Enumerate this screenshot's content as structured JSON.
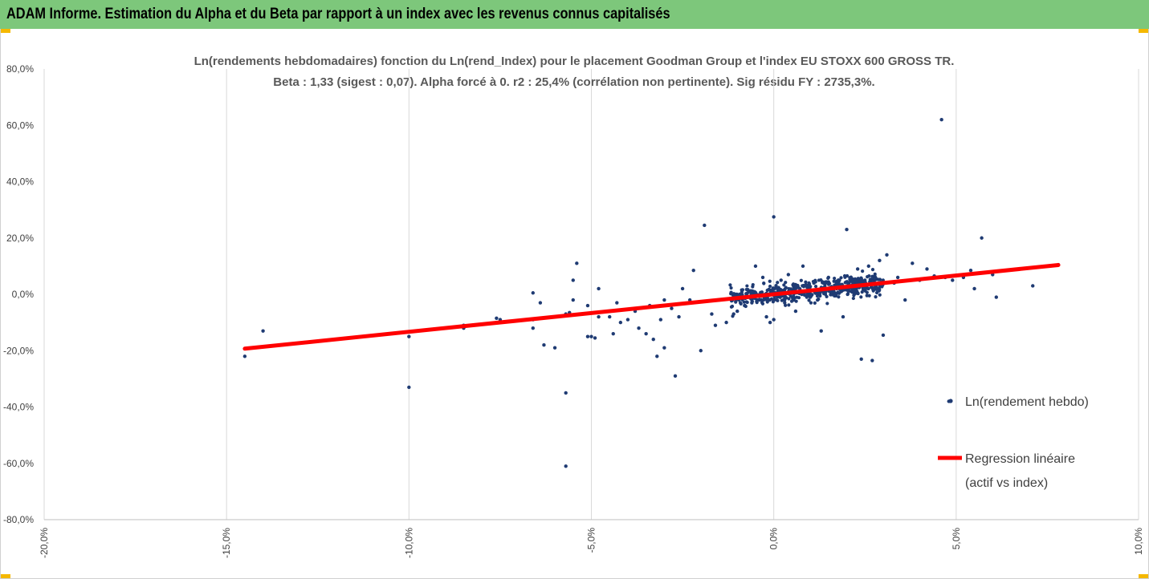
{
  "header": {
    "title": "ADAM Informe. Estimation du Alpha et du Beta par rapport à un index avec les revenus connus capitalisés"
  },
  "colors": {
    "banner": "#7dc77b",
    "accent": "#f5b800",
    "points": "#1f3b73",
    "regression": "#ff0000",
    "grid": "#d9d9d9"
  },
  "chart_data": {
    "type": "scatter",
    "title": "Ln(rendements hebdomadaires) fonction du Ln(rend_Index) pour le placement Goodman Group et l'index EU STOXX 600 GROSS TR.",
    "subtitle": "Beta : 1,33 (sigest : 0,07). Alpha forcé à 0. r2 : 25,4% (corrélation non pertinente). Sig résidu FY : 2735,3%.",
    "xlim": [
      -0.2,
      0.1
    ],
    "ylim": [
      -0.8,
      0.8
    ],
    "x_ticks": [
      "-20,0%",
      "-15,0%",
      "-10,0%",
      "-5,0%",
      "0,0%",
      "5,0%",
      "10,0%"
    ],
    "y_ticks": [
      "80,0%",
      "60,0%",
      "40,0%",
      "20,0%",
      "0,0%",
      "-20,0%",
      "-40,0%",
      "-60,0%",
      "-80,0%"
    ],
    "grid": "vertical",
    "legend_position": "right",
    "series": [
      {
        "name": "Ln(rendement hebdo)",
        "kind": "points",
        "points": [
          [
            -0.145,
            -0.22
          ],
          [
            -0.14,
            -0.13
          ],
          [
            -0.1,
            -0.15
          ],
          [
            -0.1,
            -0.33
          ],
          [
            -0.085,
            -0.12
          ],
          [
            -0.085,
            -0.11
          ],
          [
            -0.076,
            -0.085
          ],
          [
            -0.075,
            -0.09
          ],
          [
            -0.066,
            0.005
          ],
          [
            -0.066,
            -0.12
          ],
          [
            -0.066,
            -0.09
          ],
          [
            -0.064,
            -0.03
          ],
          [
            -0.063,
            -0.18
          ],
          [
            -0.06,
            -0.19
          ],
          [
            -0.057,
            -0.35
          ],
          [
            -0.057,
            -0.61
          ],
          [
            -0.057,
            -0.07
          ],
          [
            -0.056,
            -0.065
          ],
          [
            -0.055,
            0.05
          ],
          [
            -0.055,
            -0.02
          ],
          [
            -0.054,
            0.11
          ],
          [
            -0.051,
            -0.15
          ],
          [
            -0.051,
            -0.04
          ],
          [
            -0.05,
            -0.15
          ],
          [
            -0.049,
            -0.155
          ],
          [
            -0.048,
            -0.08
          ],
          [
            -0.048,
            0.02
          ],
          [
            -0.045,
            -0.08
          ],
          [
            -0.044,
            -0.14
          ],
          [
            -0.043,
            -0.03
          ],
          [
            -0.042,
            -0.1
          ],
          [
            -0.04,
            -0.09
          ],
          [
            -0.038,
            -0.06
          ],
          [
            -0.037,
            -0.12
          ],
          [
            -0.035,
            -0.14
          ],
          [
            -0.034,
            -0.04
          ],
          [
            -0.033,
            -0.16
          ],
          [
            -0.032,
            -0.22
          ],
          [
            -0.031,
            -0.09
          ],
          [
            -0.03,
            -0.19
          ],
          [
            -0.03,
            -0.02
          ],
          [
            -0.028,
            -0.05
          ],
          [
            -0.027,
            -0.29
          ],
          [
            -0.026,
            -0.08
          ],
          [
            -0.025,
            0.02
          ],
          [
            -0.023,
            -0.02
          ],
          [
            -0.022,
            0.085
          ],
          [
            -0.02,
            -0.2
          ],
          [
            -0.019,
            0.245
          ],
          [
            -0.017,
            -0.07
          ],
          [
            -0.016,
            -0.11
          ],
          [
            -0.015,
            -0.02
          ],
          [
            -0.013,
            -0.1
          ],
          [
            -0.011,
            -0.07
          ],
          [
            -0.01,
            -0.06
          ],
          [
            -0.008,
            -0.04
          ],
          [
            -0.006,
            -0.03
          ],
          [
            -0.005,
            0.1
          ],
          [
            -0.004,
            -0.02
          ],
          [
            -0.003,
            0.06
          ],
          [
            -0.002,
            -0.08
          ],
          [
            -0.001,
            -0.1
          ],
          [
            0.0,
            0.275
          ],
          [
            0.0,
            -0.09
          ],
          [
            0.001,
            -0.01
          ],
          [
            0.002,
            0.05
          ],
          [
            0.003,
            -0.03
          ],
          [
            0.004,
            0.07
          ],
          [
            0.006,
            -0.06
          ],
          [
            0.008,
            0.1
          ],
          [
            0.009,
            0.03
          ],
          [
            0.01,
            -0.01
          ],
          [
            0.011,
            0.04
          ],
          [
            0.012,
            -0.02
          ],
          [
            0.013,
            -0.13
          ],
          [
            0.015,
            0.06
          ],
          [
            0.016,
            0.02
          ],
          [
            0.018,
            0.05
          ],
          [
            0.019,
            -0.08
          ],
          [
            0.02,
            0.23
          ],
          [
            0.021,
            0.03
          ],
          [
            0.023,
            0.09
          ],
          [
            0.024,
            -0.23
          ],
          [
            0.025,
            0.05
          ],
          [
            0.026,
            0.1
          ],
          [
            0.027,
            -0.235
          ],
          [
            0.028,
            0.03
          ],
          [
            0.029,
            0.12
          ],
          [
            0.03,
            -0.145
          ],
          [
            0.031,
            0.14
          ],
          [
            0.033,
            0.04
          ],
          [
            0.034,
            0.06
          ],
          [
            0.036,
            -0.02
          ],
          [
            0.038,
            0.11
          ],
          [
            0.04,
            0.05
          ],
          [
            0.042,
            0.09
          ],
          [
            0.044,
            0.065
          ],
          [
            0.046,
            0.62
          ],
          [
            0.047,
            0.06
          ],
          [
            0.048,
            -0.38
          ],
          [
            0.049,
            0.05
          ],
          [
            0.052,
            0.06
          ],
          [
            0.054,
            0.085
          ],
          [
            0.055,
            0.02
          ],
          [
            0.057,
            0.2
          ],
          [
            0.06,
            0.07
          ],
          [
            0.061,
            -0.01
          ],
          [
            0.071,
            0.03
          ],
          [
            0.078,
            0.105
          ]
        ],
        "cloud": {
          "x_range": [
            -0.012,
            0.03
          ],
          "y_std": 0.03,
          "count": 520
        }
      },
      {
        "name": "Regression linéaire (actif vs index)",
        "name_lines": [
          "Regression linéaire",
          "(actif vs index)"
        ],
        "kind": "line",
        "x": [
          -0.145,
          0.078
        ],
        "y": [
          -0.193,
          0.104
        ]
      }
    ]
  }
}
